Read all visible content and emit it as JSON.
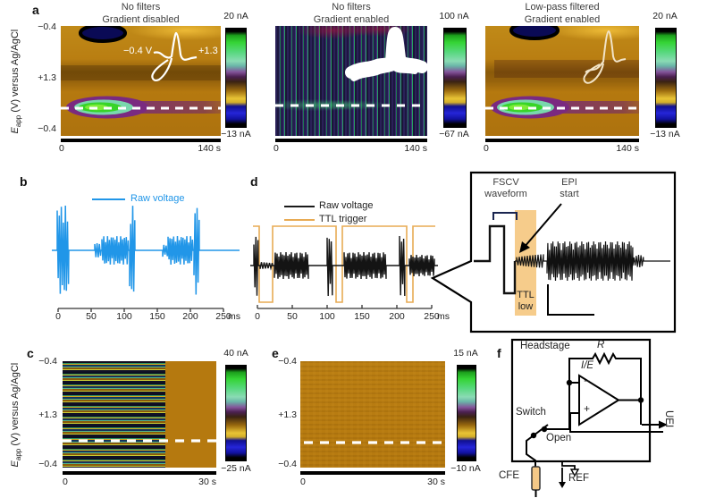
{
  "colors": {
    "trace_blue": "#2196e8",
    "ttl_orange": "#e8ab54",
    "ttl_band_fill": "#f6cc8b",
    "heatmap_background_amber": "#b5790f",
    "fscv_green": "#37d428",
    "fscv_teal": "#79d8ad",
    "fscv_purple": "#7a2a80",
    "negative_navy": "#0a0a55",
    "electrode_tan": "#f4c887"
  },
  "panel_a": {
    "label": "a",
    "y_axis": {
      "var": "E",
      "sub": "app",
      "rest": " (V) versus Ag/AgCl"
    },
    "y_ticks": [
      "−0.4",
      "+1.3",
      "−0.4"
    ],
    "plots": [
      {
        "title1": "No filters",
        "title2": "Gradient disabled",
        "cb_max": "20 nA",
        "cb_min": "−13 nA",
        "x_start": "0",
        "x_end": "140 s",
        "inset_left": "−0.4 V",
        "inset_right": "+1.3"
      },
      {
        "title1": "No filters",
        "title2": "Gradient enabled",
        "cb_max": "100 nA",
        "cb_min": "−67 nA",
        "x_start": "0",
        "x_end": "140 s"
      },
      {
        "title1": "Low-pass filtered",
        "title2": "Gradient enabled",
        "cb_max": "20 nA",
        "cb_min": "−13 nA",
        "x_start": "0",
        "x_end": "140 s"
      }
    ]
  },
  "panel_b": {
    "label": "b",
    "legend": "Raw voltage",
    "x_ticks": [
      "0",
      "50",
      "100",
      "150",
      "200",
      "250"
    ],
    "x_unit": "ms"
  },
  "panel_d": {
    "label": "d",
    "legend_raw": "Raw voltage",
    "legend_ttl": "TTL trigger",
    "x_ticks": [
      "0",
      "50",
      "100",
      "150",
      "200",
      "250"
    ],
    "x_unit": "ms",
    "inset": {
      "fscv1": "FSCV",
      "fscv2": "waveform",
      "epi1": "EPI",
      "epi2": "start",
      "ttl1": "TTL",
      "ttl2": "low"
    }
  },
  "panel_c": {
    "label": "c",
    "y_axis": {
      "var": "E",
      "sub": "app",
      "rest": " (V) versus Ag/AgCl"
    },
    "y_ticks": [
      "−0.4",
      "+1.3",
      "−0.4"
    ],
    "cb_max": "40 nA",
    "cb_min": "−25 nA",
    "x_start": "0",
    "x_end": "30 s"
  },
  "panel_e": {
    "label": "e",
    "y_ticks": [
      "−0.4",
      "+1.3",
      "−0.4"
    ],
    "cb_max": "15 nA",
    "cb_min": "−10 nA",
    "x_start": "0",
    "x_end": "30 s"
  },
  "panel_f": {
    "label": "f",
    "headstage": "Headstage",
    "resistor": "R",
    "amp": "I/E",
    "minus": "−",
    "plus": "+",
    "switch": "Switch",
    "open": "Open",
    "cfe": "CFE",
    "uei": "UEI",
    "ref": "REF"
  },
  "chart_data": [
    {
      "id": "a-left",
      "type": "heatmap",
      "title": "No filters / Gradient disabled",
      "x_range_s": [
        0,
        140
      ],
      "y_sweep_V": [
        "-0.4",
        "+1.3",
        "-0.4"
      ],
      "y_label": "Eapp (V) versus Ag/AgCl",
      "color_scale_nA": [
        -13,
        20
      ],
      "features": "green oxidation spot on white dashed line ~25% into recording; navy negative patch at top; white CV inset spanning -0.4 V to +1.3 V"
    },
    {
      "id": "a-middle",
      "type": "heatmap",
      "title": "No filters / Gradient enabled",
      "x_range_s": [
        0,
        140
      ],
      "color_scale_nA": [
        -67,
        100
      ],
      "features": "dense vertical gradient-noise stripes obscure signal; saturated white noisy CV inset"
    },
    {
      "id": "a-right",
      "type": "heatmap",
      "title": "Low-pass filtered / Gradient enabled",
      "x_range_s": [
        0,
        140
      ],
      "color_scale_nA": [
        -13,
        20
      ],
      "features": "clean signal restored, matches left panel; cream CV inset"
    },
    {
      "id": "b",
      "type": "line",
      "x_range_ms": [
        0,
        250
      ],
      "x_unit": "ms",
      "series": [
        {
          "name": "Raw voltage",
          "color": "#2196e8"
        }
      ],
      "features": "EPI bursts ~60-100 ms and ~160-205 ms flanked by large FSCV scan artifacts at ~0, ~105 and ~210 ms"
    },
    {
      "id": "d",
      "type": "line",
      "x_range_ms": [
        0,
        250
      ],
      "x_unit": "ms",
      "series": [
        {
          "name": "Raw voltage",
          "color": "#1a1a1a"
        },
        {
          "name": "TTL trigger",
          "color": "#e8ab54"
        }
      ],
      "features": "TTL trigger goes low ~0-20, ~110-120 and ~205-220 ms bracketing each FSCV scan; inset zoom shows FSCV waveform, TTL-low window and EPI start"
    },
    {
      "id": "c",
      "type": "heatmap",
      "x_range_s": [
        0,
        30
      ],
      "y_sweep_V": [
        "-0.4",
        "+1.3",
        "-0.4"
      ],
      "color_scale_nA": [
        -25,
        40
      ],
      "features": "saturated horizontal noise bands for first ~20 s, then uniform amber background"
    },
    {
      "id": "e",
      "type": "heatmap",
      "x_range_s": [
        0,
        30
      ],
      "y_sweep_V": [
        "-0.4",
        "+1.3",
        "-0.4"
      ],
      "color_scale_nA": [
        -10,
        15
      ],
      "features": "uniform low-noise amber background with white dashed analysis line"
    }
  ]
}
